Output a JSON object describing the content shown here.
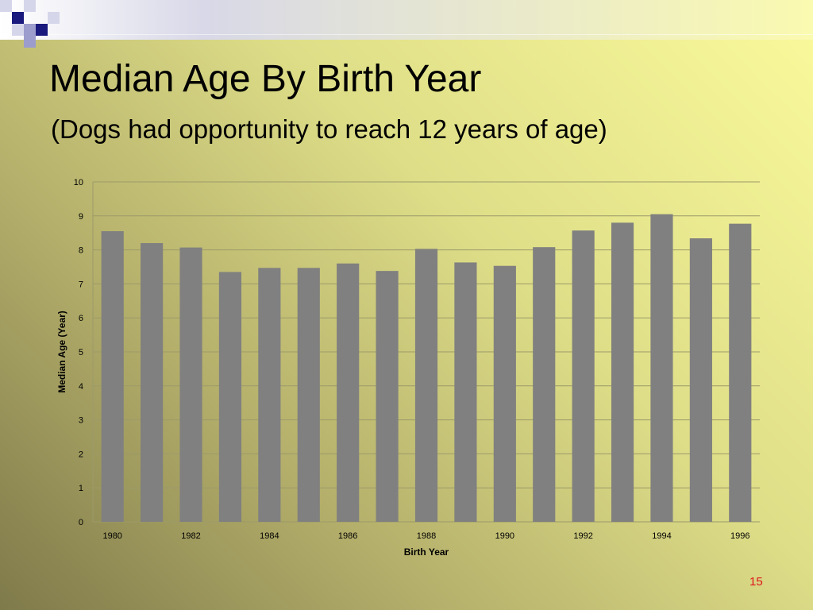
{
  "slide": {
    "title": "Median Age By Birth Year",
    "subtitle": "(Dogs had opportunity to reach 12 years of age)",
    "page_number": "15"
  },
  "colors": {
    "bar": "#808080",
    "gridline": "#9c9a6a",
    "accent_navy": "#1a1a7e",
    "page_number": "#e0151b"
  },
  "chart_data": {
    "type": "bar",
    "title": "",
    "xlabel": "Birth Year",
    "ylabel": "Median Age (Year)",
    "categories": [
      "1980",
      "1981",
      "1982",
      "1983",
      "1984",
      "1985",
      "1986",
      "1987",
      "1988",
      "1989",
      "1990",
      "1991",
      "1992",
      "1993",
      "1994",
      "1995",
      "1996"
    ],
    "tick_labels": [
      "1980",
      "",
      "1982",
      "",
      "1984",
      "",
      "1986",
      "",
      "1988",
      "",
      "1990",
      "",
      "1992",
      "",
      "1994",
      "",
      "1996"
    ],
    "values": [
      8.55,
      8.2,
      8.07,
      7.35,
      7.47,
      7.47,
      7.6,
      7.38,
      8.03,
      7.63,
      7.53,
      8.08,
      8.57,
      8.8,
      9.05,
      8.34,
      8.77
    ],
    "ylim": [
      0,
      10
    ],
    "yticks": [
      0,
      1,
      2,
      3,
      4,
      5,
      6,
      7,
      8,
      9,
      10
    ],
    "grid": true,
    "legend": "none"
  }
}
